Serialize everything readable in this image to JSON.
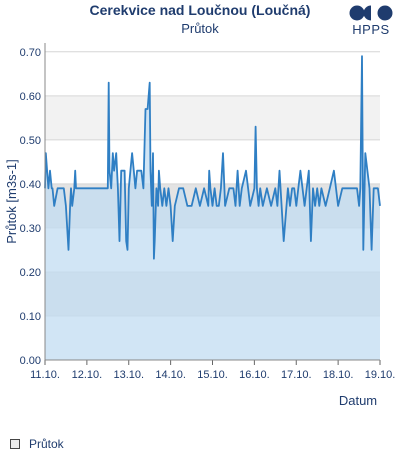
{
  "header": {
    "title": "Cerekvice nad Loučnou (Loučná)",
    "subtitle": "Průtok",
    "logo_text": "HPPS"
  },
  "legend": {
    "label": "Průtok"
  },
  "colors": {
    "line": "#2f7fc4",
    "area": "#c2dcf1",
    "band_light": "#f2f2f2",
    "band_dark": "#e3e3e3",
    "text": "#1f3c6e",
    "logo": "#1f3c6e"
  },
  "chart_data": {
    "type": "area",
    "title": "Cerekvice nad Loučnou (Loučná)",
    "subtitle": "Průtok",
    "xlabel": "Datum",
    "ylabel": "Průtok [m3s-1]",
    "ylim": [
      0,
      0.72
    ],
    "xlim": [
      0,
      8.0
    ],
    "yticks": [
      "0.00",
      "0.10",
      "0.20",
      "0.30",
      "0.40",
      "0.50",
      "0.60",
      "0.70"
    ],
    "xticks": [
      "11.10.",
      "12.10.",
      "13.10.",
      "14.10.",
      "15.10.",
      "16.10.",
      "17.10.",
      "18.10.",
      "19.10."
    ],
    "bands": [
      "0.10-0.20",
      "0.30-0.40",
      "0.50-0.60"
    ],
    "grid": true,
    "legend": "bottom-left",
    "series": [
      {
        "name": "Průtok",
        "x": [
          0,
          0.02,
          0.05,
          0.08,
          0.12,
          0.16,
          0.18,
          0.22,
          0.3,
          0.45,
          0.5,
          0.53,
          0.56,
          0.6,
          0.62,
          0.65,
          0.7,
          0.72,
          0.74,
          0.8,
          0.85,
          0.9,
          0.95,
          1.0,
          1.1,
          1.2,
          1.3,
          1.4,
          1.5,
          1.52,
          1.54,
          1.58,
          1.62,
          1.65,
          1.7,
          1.74,
          1.78,
          1.82,
          1.86,
          1.9,
          1.94,
          1.97,
          2.0,
          2.04,
          2.08,
          2.12,
          2.16,
          2.2,
          2.3,
          2.35,
          2.4,
          2.45,
          2.5,
          2.52,
          2.55,
          2.58,
          2.6,
          2.62,
          2.66,
          2.7,
          2.72,
          2.75,
          2.8,
          2.85,
          2.9,
          2.95,
          3.0,
          3.05,
          3.1,
          3.2,
          3.3,
          3.4,
          3.5,
          3.6,
          3.7,
          3.8,
          3.9,
          3.92,
          3.95,
          4.0,
          4.05,
          4.1,
          4.15,
          4.2,
          4.25,
          4.3,
          4.4,
          4.5,
          4.55,
          4.6,
          4.65,
          4.7,
          4.8,
          4.9,
          5.0,
          5.03,
          5.06,
          5.1,
          5.14,
          5.2,
          5.3,
          5.4,
          5.5,
          5.55,
          5.6,
          5.7,
          5.8,
          5.85,
          5.9,
          5.95,
          6.0,
          6.05,
          6.1,
          6.2,
          6.3,
          6.35,
          6.4,
          6.45,
          6.5,
          6.55,
          6.6,
          6.7,
          6.8,
          6.9,
          7.0,
          7.1,
          7.2,
          7.35,
          7.45,
          7.5,
          7.53,
          7.57,
          7.6,
          7.65,
          7.7,
          7.75,
          7.8,
          7.85,
          7.9,
          7.95,
          8.0
        ],
        "y": [
          0.39,
          0.47,
          0.43,
          0.39,
          0.43,
          0.39,
          0.39,
          0.35,
          0.39,
          0.39,
          0.35,
          0.3,
          0.25,
          0.35,
          0.39,
          0.35,
          0.39,
          0.43,
          0.39,
          0.39,
          0.39,
          0.39,
          0.39,
          0.39,
          0.39,
          0.39,
          0.39,
          0.39,
          0.39,
          0.63,
          0.43,
          0.39,
          0.47,
          0.43,
          0.47,
          0.39,
          0.27,
          0.43,
          0.43,
          0.43,
          0.27,
          0.25,
          0.39,
          0.43,
          0.47,
          0.43,
          0.39,
          0.43,
          0.43,
          0.39,
          0.57,
          0.57,
          0.63,
          0.43,
          0.35,
          0.47,
          0.23,
          0.27,
          0.39,
          0.35,
          0.43,
          0.39,
          0.35,
          0.39,
          0.35,
          0.39,
          0.35,
          0.27,
          0.35,
          0.39,
          0.39,
          0.35,
          0.35,
          0.39,
          0.35,
          0.39,
          0.35,
          0.43,
          0.39,
          0.35,
          0.39,
          0.35,
          0.35,
          0.39,
          0.47,
          0.35,
          0.39,
          0.39,
          0.35,
          0.43,
          0.35,
          0.39,
          0.43,
          0.35,
          0.39,
          0.53,
          0.39,
          0.35,
          0.39,
          0.35,
          0.39,
          0.35,
          0.39,
          0.35,
          0.43,
          0.27,
          0.39,
          0.35,
          0.39,
          0.39,
          0.35,
          0.39,
          0.43,
          0.35,
          0.43,
          0.27,
          0.39,
          0.35,
          0.39,
          0.35,
          0.39,
          0.35,
          0.39,
          0.43,
          0.35,
          0.39,
          0.39,
          0.39,
          0.39,
          0.35,
          0.39,
          0.69,
          0.25,
          0.47,
          0.43,
          0.39,
          0.25,
          0.39,
          0.39,
          0.39,
          0.35
        ]
      }
    ]
  }
}
